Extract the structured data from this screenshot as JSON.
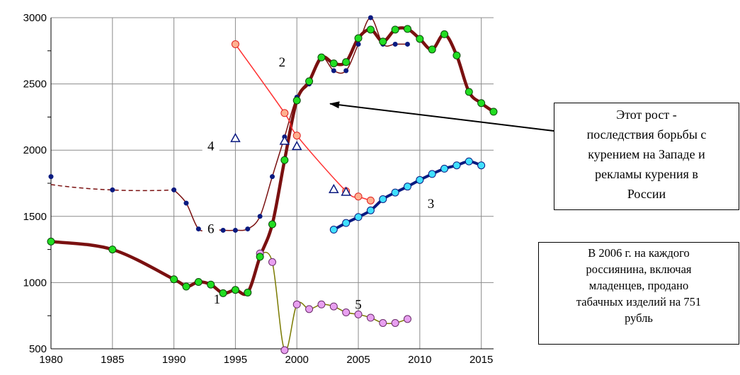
{
  "chart_data": {
    "type": "line",
    "title": "",
    "xlabel": "",
    "ylabel": "",
    "xlim": [
      1980,
      2016
    ],
    "ylim": [
      500,
      3000
    ],
    "x_ticks": [
      "1980",
      "1985",
      "1990",
      "1995",
      "2000",
      "2005",
      "2010",
      "2015"
    ],
    "y_ticks": [
      "500",
      "1000",
      "1500",
      "2000",
      "2500",
      "3000"
    ],
    "grid": true,
    "series": [
      {
        "name": "1",
        "color": "#7a1010",
        "marker": "circle-green",
        "x": [
          1980,
          1985,
          1990,
          1991,
          1992,
          1993,
          1994,
          1995,
          1996,
          1997,
          1998,
          1999,
          2000,
          2001,
          2002,
          2003,
          2004,
          2005,
          2006,
          2007,
          2008,
          2009,
          2010,
          2011,
          2012,
          2013,
          2014,
          2015,
          2016
        ],
        "y": [
          1310,
          1250,
          1025,
          970,
          1005,
          985,
          920,
          945,
          925,
          1195,
          1440,
          1925,
          2375,
          2520,
          2700,
          2655,
          2665,
          2845,
          2910,
          2820,
          2910,
          2915,
          2840,
          2760,
          2875,
          2715,
          2440,
          2355,
          2290
        ]
      },
      {
        "name": "2",
        "color": "#ff3030",
        "marker": "circle-salmon",
        "x": [
          1995,
          1999,
          2000,
          2004,
          2005,
          2006
        ],
        "y": [
          2800,
          2280,
          2110,
          1690,
          1650,
          1620
        ]
      },
      {
        "name": "3",
        "color": "#0a1a80",
        "marker": "circle-cyan",
        "x": [
          2003,
          2004,
          2005,
          2006,
          2007,
          2008,
          2009,
          2010,
          2011,
          2012,
          2013,
          2014,
          2015
        ],
        "y": [
          1400,
          1450,
          1495,
          1545,
          1630,
          1680,
          1725,
          1775,
          1820,
          1860,
          1885,
          1915,
          1885
        ]
      },
      {
        "name": "4",
        "color": "#0a1a80",
        "marker": "triangle",
        "x": [
          1995,
          1999,
          2000,
          2003,
          2004
        ],
        "y": [
          2090,
          2070,
          2030,
          1705,
          1685
        ]
      },
      {
        "name": "5",
        "color": "#7a7a00",
        "marker": "circle-violet",
        "x": [
          1997,
          1998,
          1999,
          2000,
          2001,
          2002,
          2003,
          2004,
          2005,
          2006,
          2007,
          2008,
          2009
        ],
        "y": [
          1220,
          1155,
          490,
          835,
          800,
          835,
          820,
          775,
          760,
          735,
          695,
          695,
          725
        ]
      },
      {
        "name": "6",
        "color": "#7a1010",
        "marker": "dot-navy",
        "x": [
          1980,
          1985,
          1990,
          1991,
          1992,
          1993,
          1994,
          1995,
          1996,
          1997,
          1998,
          1999,
          2000,
          2001,
          2002,
          2003,
          2004,
          2005,
          2006,
          2007,
          2008,
          2009
        ],
        "y": [
          1800,
          1700,
          1700,
          1600,
          1405,
          1405,
          1395,
          1395,
          1405,
          1500,
          1800,
          2100,
          2400,
          2500,
          2700,
          2600,
          2600,
          2800,
          3000,
          2800,
          2800,
          2800
        ]
      }
    ],
    "annotations": [
      {
        "text": "Этот рост -\nпоследствия борьбы с\nкурением на Западе и\nрекламы курения в\nРоссии",
        "arrow_to": [
          2002.7,
          2350
        ]
      },
      {
        "text": "В 2006 г. на каждого\nроссиянина, включая\nмладенцев, продано\nтабачных изделий на 751\nрубль"
      }
    ]
  }
}
